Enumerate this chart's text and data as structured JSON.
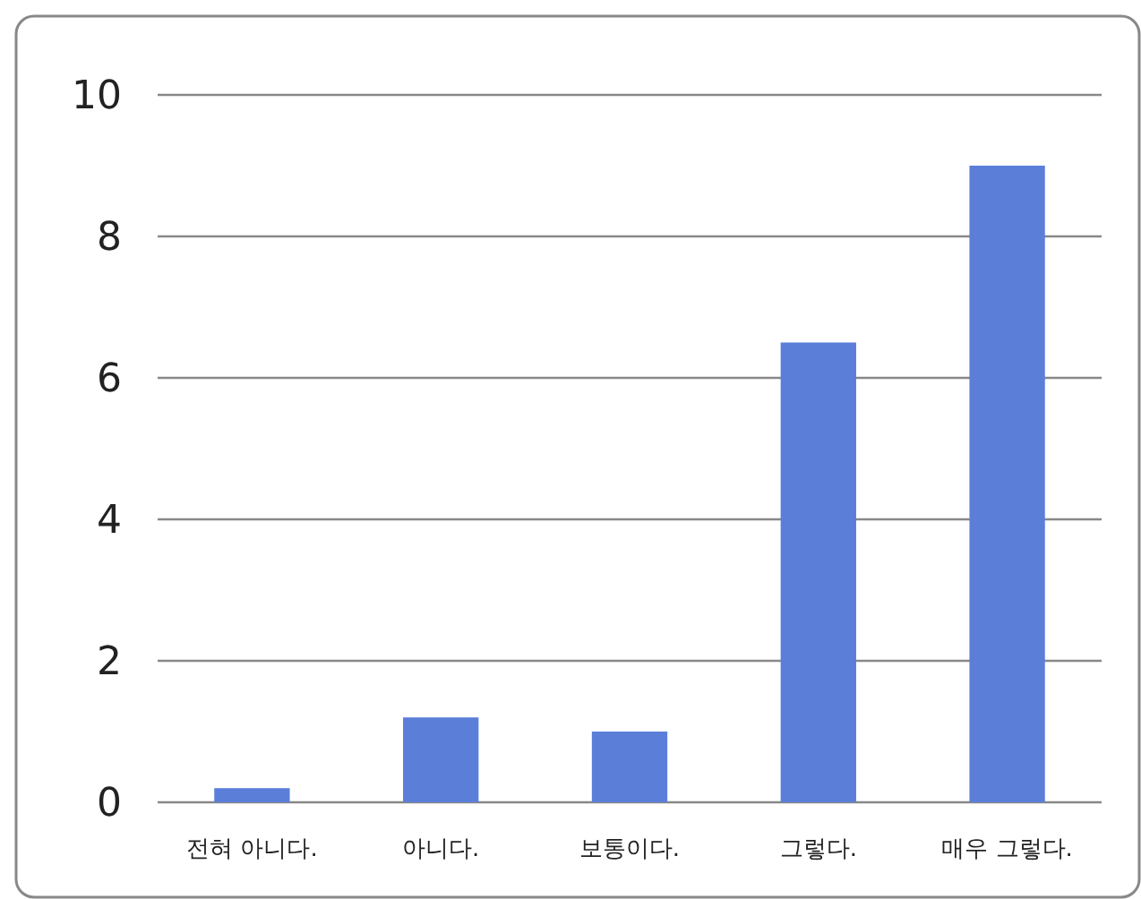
{
  "chart_data": {
    "type": "bar",
    "categories": [
      "전혀 아니다.",
      "아니다.",
      "보통이다.",
      "그렇다.",
      "매우 그렇다."
    ],
    "values": [
      0.2,
      1.2,
      1.0,
      6.5,
      9.0
    ],
    "color": "#5b7fd9",
    "ylim": [
      0,
      10
    ],
    "yticks": [
      0,
      2,
      4,
      6,
      8,
      10
    ],
    "grid": "y"
  }
}
